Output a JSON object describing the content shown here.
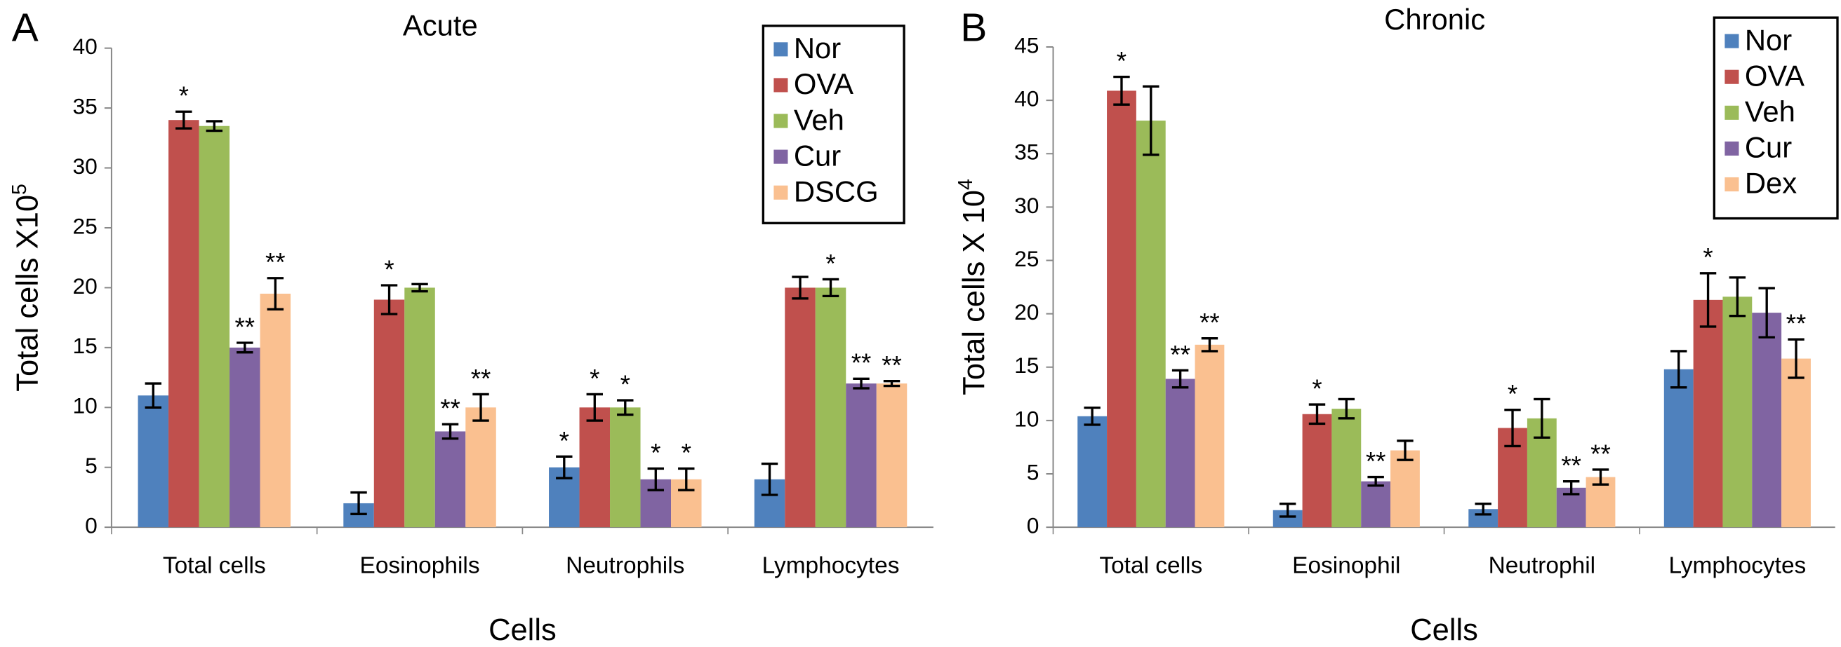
{
  "chart_data": [
    {
      "type": "bar",
      "panel": "A",
      "title": "Acute",
      "ylabel": "Total cells X10",
      "ylabel_exponent": "5",
      "xlabel": "Cells",
      "categories": [
        "Total cells",
        "Eosinophils",
        "Neutrophils",
        "Lymphocytes"
      ],
      "ylim": [
        0,
        40
      ],
      "yticks": [
        0,
        5,
        10,
        15,
        20,
        25,
        30,
        35,
        40
      ],
      "series": [
        {
          "name": "Nor",
          "color": "#4f81bd",
          "values": [
            11,
            2,
            5,
            4
          ],
          "errors": [
            1,
            0.9,
            0.9,
            1.3
          ],
          "annotations": [
            null,
            null,
            "*",
            null
          ]
        },
        {
          "name": "OVA",
          "color": "#c0504d",
          "values": [
            34,
            19,
            10,
            20
          ],
          "errors": [
            0.7,
            1.2,
            1.1,
            0.9
          ],
          "annotations": [
            "*",
            "*",
            "*",
            null
          ]
        },
        {
          "name": "Veh",
          "color": "#9bbb59",
          "values": [
            33.5,
            20,
            10,
            20
          ],
          "errors": [
            0.4,
            0.3,
            0.6,
            0.7
          ],
          "annotations": [
            null,
            null,
            "*",
            "*"
          ]
        },
        {
          "name": "Cur",
          "color": "#8064a2",
          "values": [
            15,
            8,
            4,
            12
          ],
          "errors": [
            0.4,
            0.6,
            0.9,
            0.4
          ],
          "annotations": [
            "**",
            "**",
            "*",
            "**"
          ]
        },
        {
          "name": "DSCG",
          "color": "#fac090",
          "values": [
            19.5,
            10,
            4,
            12
          ],
          "errors": [
            1.3,
            1.1,
            0.9,
            0.2
          ],
          "annotations": [
            "**",
            "**",
            "*",
            "**"
          ]
        }
      ]
    },
    {
      "type": "bar",
      "panel": "B",
      "title": "Chronic",
      "ylabel": "Total cells X 10",
      "ylabel_exponent": "4",
      "xlabel": "Cells",
      "categories": [
        "Total cells",
        "Eosinophil",
        "Neutrophil",
        "Lymphocytes"
      ],
      "ylim": [
        0,
        45
      ],
      "yticks": [
        0,
        5,
        10,
        15,
        20,
        25,
        30,
        35,
        40,
        45
      ],
      "series": [
        {
          "name": "Nor",
          "color": "#4f81bd",
          "values": [
            10.4,
            1.6,
            1.7,
            14.8
          ],
          "errors": [
            0.8,
            0.6,
            0.5,
            1.7
          ],
          "annotations": [
            null,
            null,
            null,
            null
          ]
        },
        {
          "name": "OVA",
          "color": "#c0504d",
          "values": [
            40.9,
            10.6,
            9.3,
            21.3
          ],
          "errors": [
            1.3,
            0.9,
            1.7,
            2.5
          ],
          "annotations": [
            "*",
            "*",
            "*",
            "*"
          ]
        },
        {
          "name": "Veh",
          "color": "#9bbb59",
          "values": [
            38.1,
            11.1,
            10.2,
            21.6
          ],
          "errors": [
            3.2,
            0.9,
            1.8,
            1.8
          ],
          "annotations": [
            null,
            null,
            null,
            null
          ]
        },
        {
          "name": "Cur",
          "color": "#8064a2",
          "values": [
            13.9,
            4.3,
            3.7,
            20.1
          ],
          "errors": [
            0.8,
            0.4,
            0.6,
            2.3
          ],
          "annotations": [
            "**",
            "**",
            "**",
            null
          ]
        },
        {
          "name": "Dex",
          "color": "#fac090",
          "values": [
            17.1,
            7.2,
            4.7,
            15.8
          ],
          "errors": [
            0.6,
            0.9,
            0.7,
            1.8
          ],
          "annotations": [
            "**",
            null,
            "**",
            "**"
          ]
        }
      ]
    }
  ]
}
